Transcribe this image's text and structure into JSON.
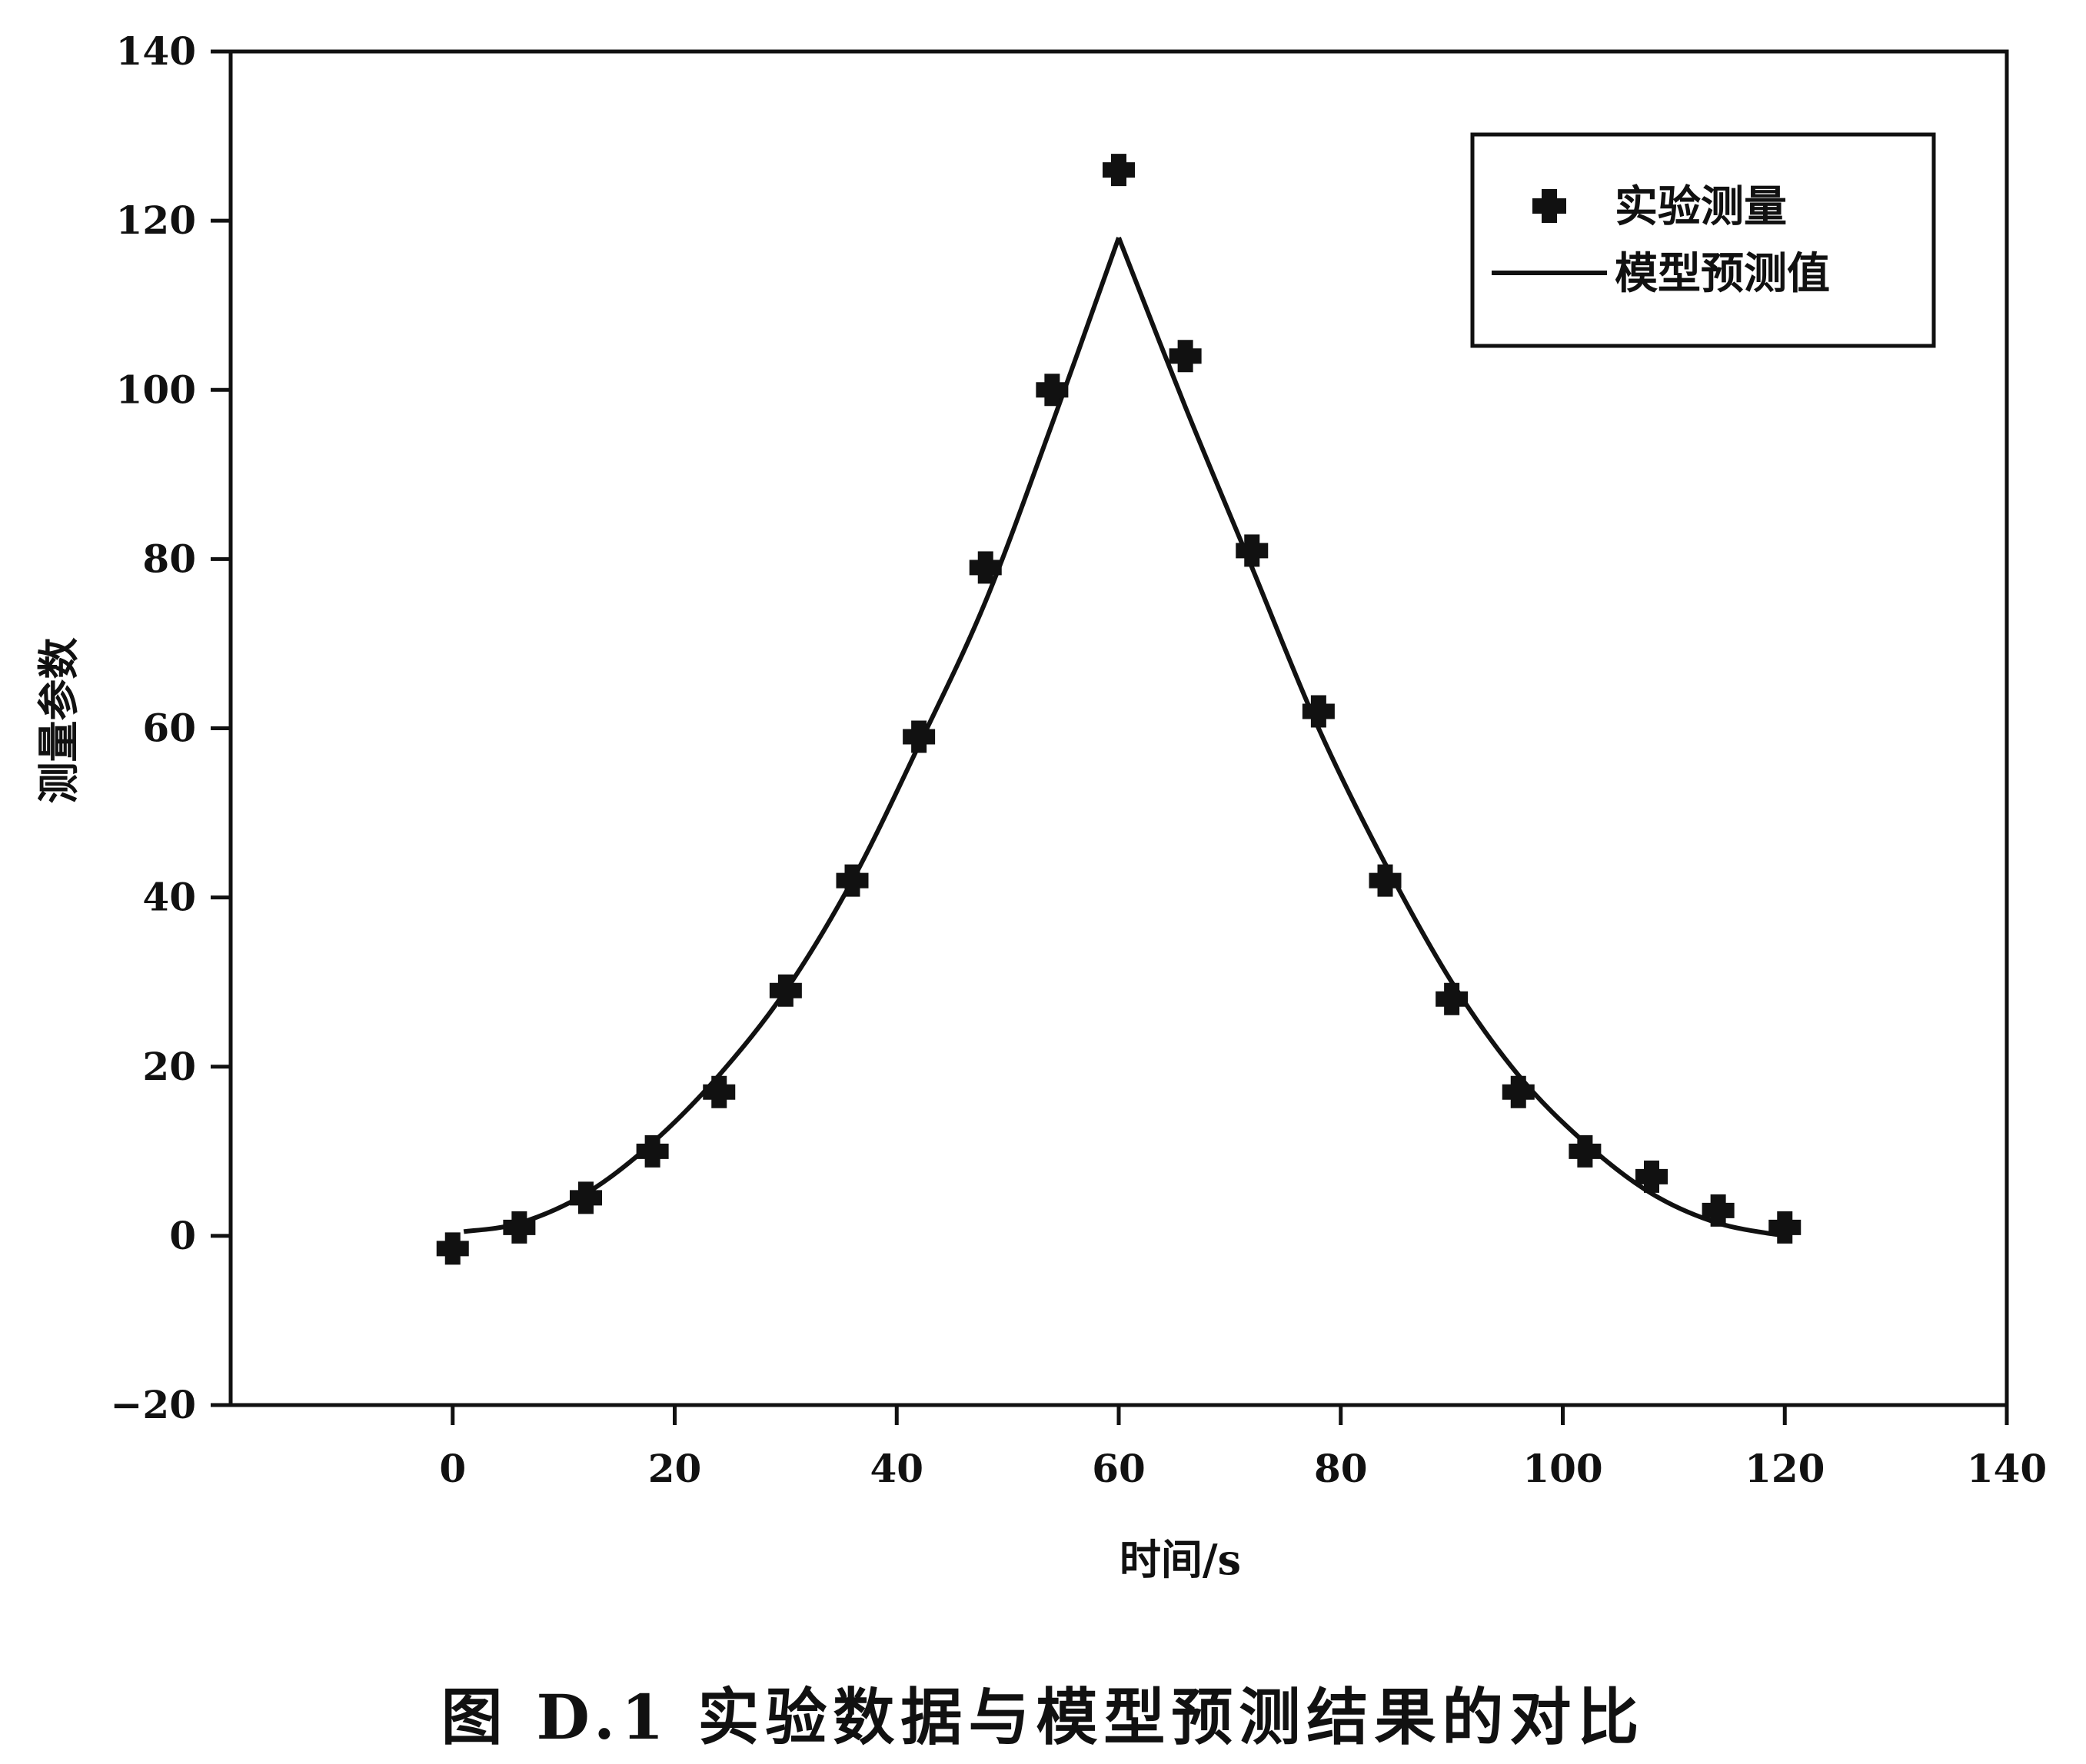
{
  "caption": "图 D.1   实验数据与模型预测结果的对比",
  "chart_data": {
    "type": "scatter",
    "title": "",
    "xlabel": "时间/s",
    "ylabel": "测量参数",
    "xlim": [
      -20,
      140
    ],
    "ylim": [
      -20,
      140
    ],
    "xticks": [
      0,
      20,
      40,
      60,
      80,
      100,
      120,
      140
    ],
    "yticks": [
      -20,
      0,
      20,
      40,
      60,
      80,
      100,
      120,
      140
    ],
    "grid": false,
    "legend_position": "top-right",
    "series": [
      {
        "name": "实验测量",
        "kind": "scatter",
        "x": [
          0,
          6,
          12,
          18,
          24,
          30,
          36,
          42,
          48,
          54,
          60,
          66,
          72,
          78,
          84,
          90,
          96,
          102,
          108,
          114,
          120
        ],
        "y": [
          -1.5,
          1,
          4.5,
          10,
          17,
          29,
          42,
          59,
          79,
          100,
          126,
          104,
          81,
          62,
          42,
          28,
          17,
          10,
          7,
          3,
          1
        ]
      },
      {
        "name": "模型预测值",
        "kind": "line",
        "x": [
          1,
          6,
          12,
          18,
          24,
          30,
          36,
          42,
          48,
          54,
          60,
          66,
          72,
          78,
          84,
          90,
          96,
          102,
          108,
          114,
          120
        ],
        "y": [
          0.5,
          1.5,
          5,
          11,
          19,
          29,
          42,
          58,
          75,
          96,
          118,
          98,
          79,
          60,
          44,
          30,
          19,
          11,
          5,
          1.5,
          0
        ]
      }
    ]
  }
}
